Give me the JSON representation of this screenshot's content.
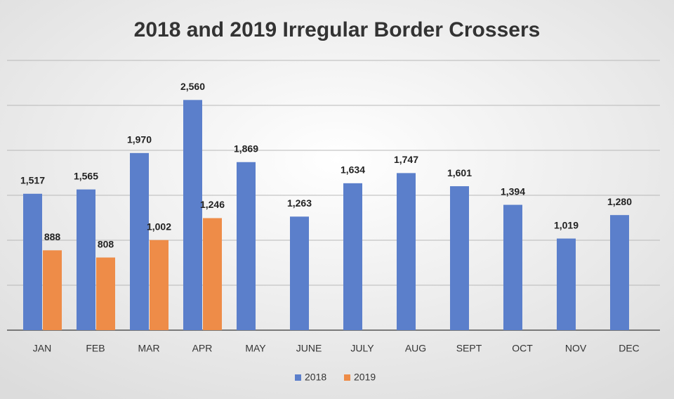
{
  "chart_data": {
    "type": "bar",
    "title": "2018 and 2019 Irregular Border Crossers",
    "categories": [
      "JAN",
      "FEB",
      "MAR",
      "APR",
      "MAY",
      "JUNE",
      "JULY",
      "AUG",
      "SEPT",
      "OCT",
      "NOV",
      "DEC"
    ],
    "series": [
      {
        "name": "2018",
        "color": "#5b7fcb",
        "values": [
          1517,
          1565,
          1970,
          2560,
          1869,
          1263,
          1634,
          1747,
          1601,
          1394,
          1019,
          1280
        ],
        "value_labels": [
          "1,517",
          "1,565",
          "1,970",
          "2,560",
          "1,869",
          "1,263",
          "1,634",
          "1,747",
          "1,601",
          "1,394",
          "1,019",
          "1,280"
        ]
      },
      {
        "name": "2019",
        "color": "#ee8c48",
        "values": [
          888,
          808,
          1002,
          1246,
          null,
          null,
          null,
          null,
          null,
          null,
          null,
          null
        ],
        "value_labels": [
          "888",
          "808",
          "1,002",
          "1,246",
          null,
          null,
          null,
          null,
          null,
          null,
          null,
          null
        ]
      }
    ],
    "ylim": [
      0,
      3000
    ],
    "yticks": [
      0,
      500,
      1000,
      1500,
      2000,
      2500,
      3000
    ],
    "grid": true
  }
}
